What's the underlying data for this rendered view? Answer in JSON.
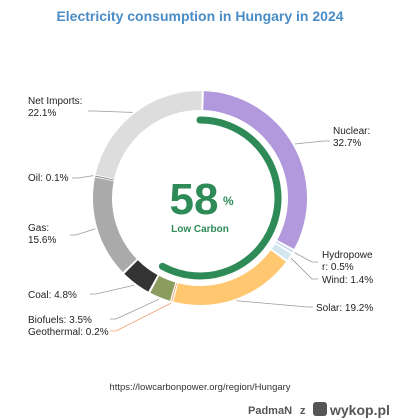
{
  "chart_data": {
    "type": "pie",
    "title": "Electricity consumption in Hungary in 2024",
    "center": {
      "value": "58",
      "unit": "%",
      "label": "Low Carbon",
      "fraction": 0.58
    },
    "slices": [
      {
        "name": "Nuclear",
        "value": 32.7,
        "label_lines": [
          "Nuclear:",
          "32.7%"
        ],
        "color": "#b298dc"
      },
      {
        "name": "Hydropower",
        "value": 0.5,
        "label_lines": [
          "Hydropowe",
          "r: 0.5%"
        ],
        "color": "#aac8e8"
      },
      {
        "name": "Wind",
        "value": 1.4,
        "label_lines": [
          "Wind: 1.4%"
        ],
        "color": "#d2e6f0"
      },
      {
        "name": "Solar",
        "value": 19.2,
        "label_lines": [
          "Solar: 19.2%"
        ],
        "color": "#ffc870"
      },
      {
        "name": "Geothermal",
        "value": 0.2,
        "label_lines": [
          "Geothermal: 0.2%"
        ],
        "color": "#f0a070"
      },
      {
        "name": "Biofuels",
        "value": 3.5,
        "label_lines": [
          "Biofuels: 3.5%"
        ],
        "color": "#8a9c5e"
      },
      {
        "name": "Coal",
        "value": 4.8,
        "label_lines": [
          "Coal: 4.8%"
        ],
        "color": "#333333"
      },
      {
        "name": "Gas",
        "value": 15.6,
        "label_lines": [
          "Gas:",
          "15.6%"
        ],
        "color": "#aaaaaa"
      },
      {
        "name": "Oil",
        "value": 0.1,
        "label_lines": [
          "Oil: 0.1%"
        ],
        "color": "#777777"
      },
      {
        "name": "Net Imports",
        "value": 22.1,
        "label_lines": [
          "Net Imports:",
          "22.1%"
        ],
        "color": "#dddddd"
      }
    ]
  },
  "colors": {
    "title": "#4a8cc6",
    "low_carbon": "#2e8b57",
    "leader": "#999999"
  },
  "source_url": "https://lowcarbonpower.org/region/Hungary",
  "watermark": {
    "user": "PadmaN",
    "separator": "z",
    "site": "wykop.pl"
  }
}
